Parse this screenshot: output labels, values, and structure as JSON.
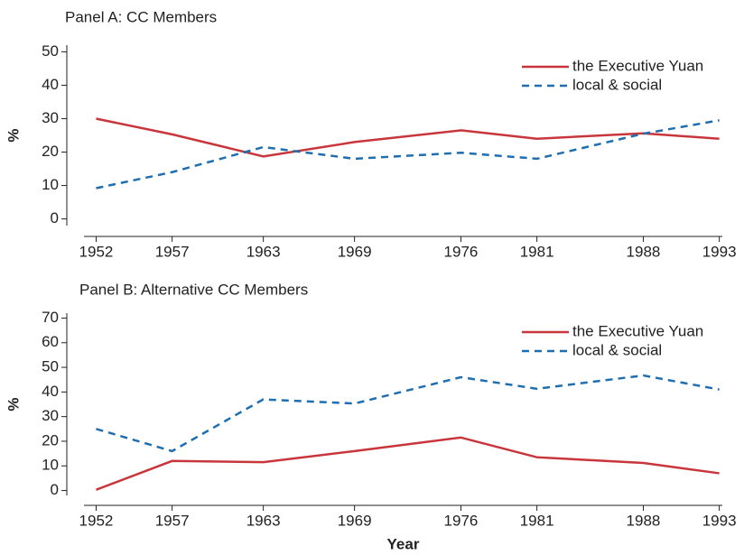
{
  "chart_data": [
    {
      "type": "line",
      "title": "Panel A: CC Members",
      "y_label": "%",
      "x": [
        1952,
        1957,
        1963,
        1969,
        1976,
        1981,
        1988,
        1993
      ],
      "xlim": [
        1951.2,
        1993.2
      ],
      "xticks": [
        1952,
        1957,
        1963,
        1969,
        1976,
        1981,
        1988,
        1993
      ],
      "ylim": [
        -2,
        52
      ],
      "yticks": [
        0,
        10,
        20,
        30,
        40,
        50
      ],
      "legend": "top-right",
      "series": [
        {
          "name": "the Executive Yuan",
          "color": "#c8363c",
          "style": "solid",
          "values": [
            30,
            25.3,
            18.7,
            23,
            26.5,
            24,
            25.6,
            24
          ]
        },
        {
          "name": "local & social",
          "color": "#1f6fb0",
          "style": "dashed",
          "values": [
            9.2,
            14,
            21.5,
            18,
            19.8,
            18,
            25.5,
            29.5
          ]
        }
      ]
    },
    {
      "type": "line",
      "title": "Panel B: Alternative CC Members",
      "y_label": "%",
      "x_label": "Year",
      "x": [
        1952,
        1957,
        1963,
        1969,
        1976,
        1981,
        1988,
        1993
      ],
      "xlim": [
        1951.2,
        1993.2
      ],
      "xticks": [
        1952,
        1957,
        1963,
        1969,
        1976,
        1981,
        1988,
        1993
      ],
      "ylim": [
        -2,
        72
      ],
      "yticks": [
        0,
        10,
        20,
        30,
        40,
        50,
        60,
        70
      ],
      "legend": "top-right",
      "series": [
        {
          "name": "the Executive Yuan",
          "color": "#c8363c",
          "style": "solid",
          "values": [
            0.3,
            12,
            11.5,
            16,
            21.5,
            13.5,
            11.2,
            7
          ]
        },
        {
          "name": "local & social",
          "color": "#1f6fb0",
          "style": "dashed",
          "values": [
            25,
            16,
            37,
            35.3,
            46,
            41.3,
            46.7,
            41
          ]
        }
      ]
    }
  ]
}
